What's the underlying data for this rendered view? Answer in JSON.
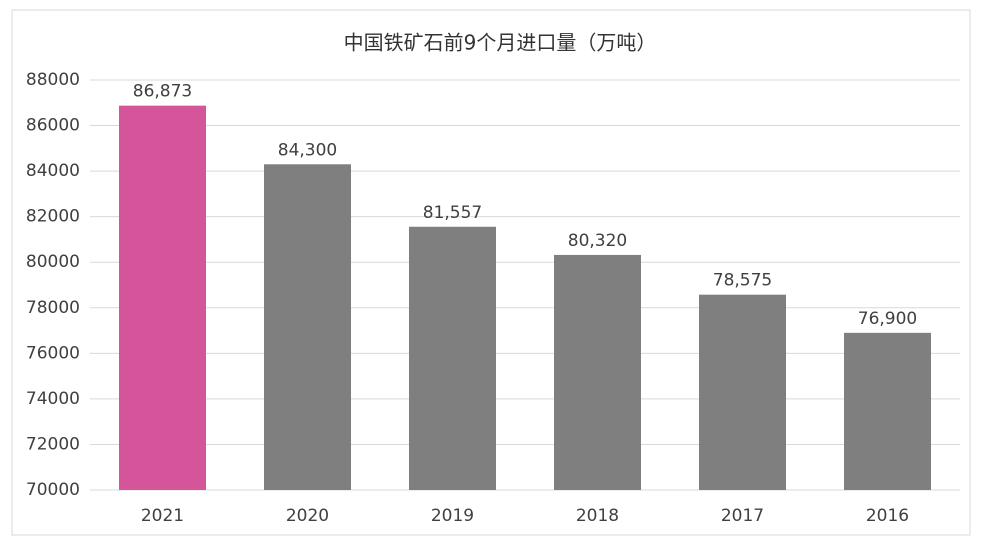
{
  "chart_data": {
    "type": "bar",
    "title": "中国铁矿石前9个月进口量（万吨）",
    "categories": [
      "2021",
      "2020",
      "2019",
      "2018",
      "2017",
      "2016"
    ],
    "values": [
      86873,
      84300,
      81557,
      80320,
      78575,
      76900
    ],
    "value_labels": [
      "86,873",
      "84,300",
      "81,557",
      "80,320",
      "78,575",
      "76,900"
    ],
    "color": "#7f7f7f",
    "highlight_color": "#d4559a",
    "ylim": [
      70000,
      88000
    ],
    "yticks": [
      70000,
      72000,
      74000,
      76000,
      78000,
      80000,
      82000,
      84000,
      86000,
      88000
    ],
    "grid": true
  }
}
